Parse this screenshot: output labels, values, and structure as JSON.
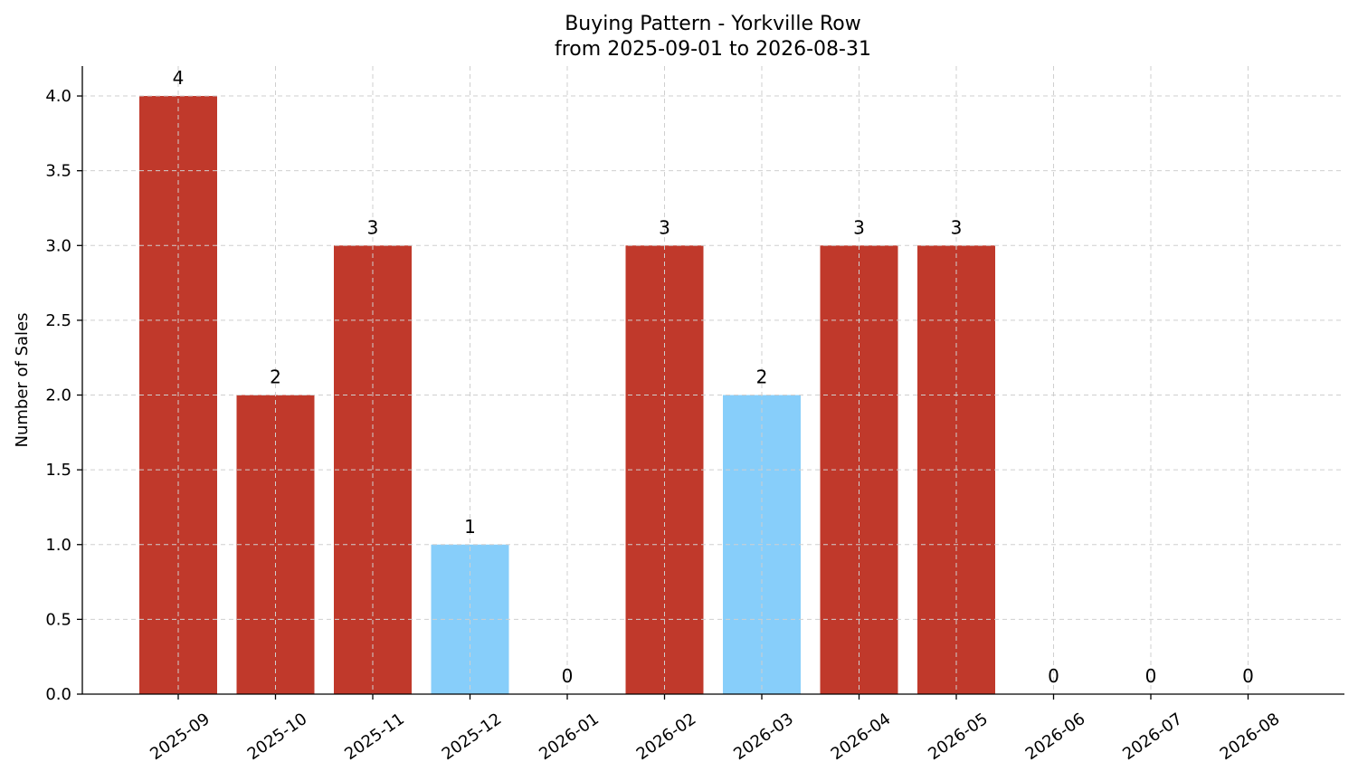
{
  "chart_data": {
    "type": "bar",
    "title": "Buying Pattern - Yorkville Row",
    "subtitle": "from 2025-09-01 to 2026-08-31",
    "xlabel": "",
    "ylabel": "Number of Sales",
    "categories": [
      "2025-09",
      "2025-10",
      "2025-11",
      "2025-12",
      "2026-01",
      "2026-02",
      "2026-03",
      "2026-04",
      "2026-05",
      "2026-06",
      "2026-07",
      "2026-08"
    ],
    "values": [
      4,
      2,
      3,
      1,
      0,
      3,
      2,
      3,
      3,
      0,
      0,
      0
    ],
    "data_labels": [
      "4",
      "2",
      "3",
      "1",
      "0",
      "3",
      "2",
      "3",
      "3",
      "0",
      "0",
      "0"
    ],
    "bar_colors": [
      "#c0392b",
      "#c0392b",
      "#c0392b",
      "#87cefa",
      "#c0392b",
      "#c0392b",
      "#87cefa",
      "#c0392b",
      "#c0392b",
      "#c0392b",
      "#c0392b",
      "#c0392b"
    ],
    "yticks": [
      "0.0",
      "0.5",
      "1.0",
      "1.5",
      "2.0",
      "2.5",
      "3.0",
      "3.5",
      "4.0"
    ],
    "ylim": [
      0,
      4.2
    ],
    "grid": true,
    "legend": "none"
  }
}
